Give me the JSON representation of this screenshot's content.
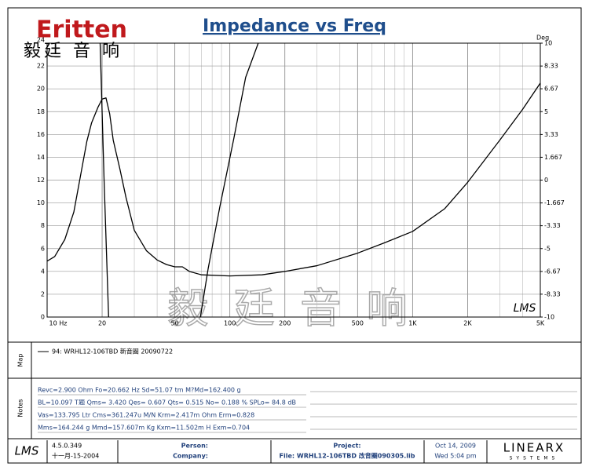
{
  "chart_data": {
    "type": "line",
    "title": "Impedance vs Freq",
    "y2_label": "Deg",
    "x_scale": "log",
    "xlim": [
      10,
      5000
    ],
    "xticks": [
      {
        "value": 10,
        "label": "10 Hz"
      },
      20,
      50,
      100,
      200,
      500,
      {
        "value": 1000,
        "label": "1K"
      },
      {
        "value": 2000,
        "label": "2K"
      },
      {
        "value": 5000,
        "label": "5K"
      }
    ],
    "ylim": [
      0,
      24
    ],
    "yticks": [
      0,
      2,
      4,
      6,
      8,
      10,
      12,
      14,
      16,
      18,
      20,
      22,
      24
    ],
    "y2lim": [
      -10,
      10
    ],
    "y2ticks": [
      10,
      8.33,
      6.67,
      5,
      3.33,
      1.667,
      0,
      -1.667,
      -3.33,
      -5,
      -6.67,
      -8.33,
      -10
    ],
    "grid": true,
    "minor_grid": true,
    "series": [
      {
        "color": "#000000",
        "x": [
          10,
          11,
          12.5,
          14,
          16.5,
          17.5,
          19,
          20,
          21,
          22,
          23,
          25,
          27,
          30,
          35,
          40,
          45,
          50,
          55,
          60,
          70,
          100,
          150,
          200,
          300,
          500,
          700,
          1000,
          1500,
          2000,
          3000,
          4000,
          5000
        ],
        "values": [
          4.9,
          5.3,
          6.8,
          9.2,
          15.4,
          17,
          18.4,
          19.1,
          19.2,
          17.8,
          15.5,
          13,
          10.5,
          7.6,
          5.8,
          5.0,
          4.6,
          4.4,
          4.4,
          4.0,
          3.7,
          3.6,
          3.7,
          4.0,
          4.5,
          5.6,
          6.5,
          7.5,
          9.5,
          11.8,
          15.5,
          18.2,
          20.5
        ]
      },
      {
        "color": "#000000",
        "axis": "y2",
        "x": [
          19.5,
          20.5,
          21.7,
          40,
          69,
          76,
          88,
          105,
          122,
          143
        ],
        "values": [
          10,
          0,
          -10,
          null,
          -10,
          -6.5,
          -2,
          3,
          7.5,
          10
        ]
      }
    ],
    "legend_text": "94: WRHL12-106TBD   新音圈 20090722"
  },
  "brand": "Eritten",
  "brand_cn": "毅廷 音 响",
  "watermark": "毅 廷 音 响",
  "chart_logo": "LMS",
  "side_labels": {
    "map": "Map",
    "notes": "Notes"
  },
  "notes": [
    "Revc=2.900 Ohm  Fo=20.662 Hz  Sd=51.07 tm M?Md=162.400 g",
    "BL=10.097 T题  Qms= 3.420  Qes= 0.607  Qts= 0.515  No= 0.188 %  SPLo= 84.8 dB",
    "Vas=133.795 Ltr  Cms=361.247u M/N  Krm=2.417m Ohm  Erm=0.828",
    "Mms=164.244 g  Mmd=157.607m Kg  Kxm=11.502m H  Exm=0.704"
  ],
  "footer": {
    "logo": "LMS",
    "version": "4.5.0.349",
    "version_date": "十一月-15-2004",
    "person": "Person:",
    "company": "Company:",
    "project": "Project:",
    "file": "File: WRHL12-106TBD 改音圈090305.lib",
    "date": "Oct 14, 2009",
    "time": "Wed  5:04 pm",
    "vendor": "LINEARX",
    "vendor_sub": "SYSTEMS"
  }
}
